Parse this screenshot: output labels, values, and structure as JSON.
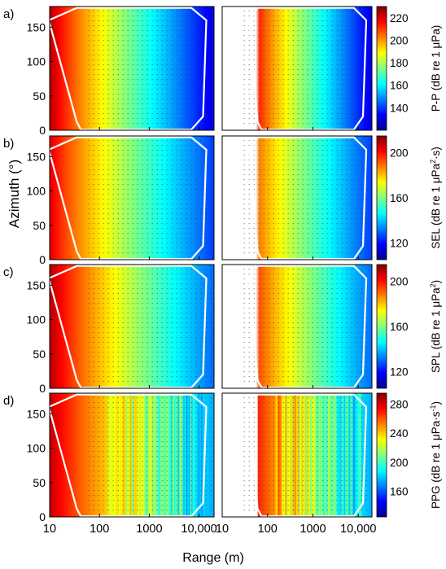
{
  "figure": {
    "ylabel": "Azimuth (°)",
    "xlabel": "Range (m)",
    "x_ticks": [
      "10",
      "100",
      "1000",
      "10,000"
    ],
    "y_ticks": [
      "0",
      "50",
      "100",
      "150"
    ]
  },
  "colors": {
    "colormap": [
      "#00008f",
      "#0000ff",
      "#0080ff",
      "#00ffff",
      "#80ff80",
      "#ffff00",
      "#ff8000",
      "#ff0000",
      "#800000"
    ],
    "boundary": "#ffffff",
    "points": "#333333",
    "axis": "#000000"
  },
  "chart_data": [
    {
      "type": "heatmap",
      "panel": "a)",
      "metric_label": "P-P",
      "colorbar_label_prefix": "P-P (dB re 1 μPa)",
      "colorbar_label_suffix": "",
      "colorbar_label_end": "",
      "colorbar_ticks": [
        140,
        160,
        180,
        200,
        220
      ],
      "zlim": [
        120,
        230
      ],
      "x_scale": "log",
      "xlim": [
        10,
        20000
      ],
      "ylim": [
        0,
        180
      ],
      "left_near_value": 225,
      "right_near_value": 215,
      "far_value": 130,
      "left_near_range_m": 10,
      "right_near_range_m": 60,
      "noisy": false
    },
    {
      "type": "heatmap",
      "panel": "b)",
      "metric_label": "SEL",
      "colorbar_label_prefix": "SEL (dB re 1 μPa",
      "colorbar_label_suffix": "2",
      "colorbar_label_end": "·s)",
      "colorbar_ticks": [
        120,
        160,
        200
      ],
      "zlim": [
        105,
        215
      ],
      "x_scale": "log",
      "xlim": [
        10,
        20000
      ],
      "ylim": [
        0,
        180
      ],
      "left_near_value": 205,
      "right_near_value": 190,
      "far_value": 125,
      "left_near_range_m": 10,
      "right_near_range_m": 60,
      "noisy": false
    },
    {
      "type": "heatmap",
      "panel": "c)",
      "metric_label": "SPL",
      "colorbar_label_prefix": "SPL (dB re 1 μPa",
      "colorbar_label_suffix": "2",
      "colorbar_label_end": ")",
      "colorbar_ticks": [
        120,
        160,
        200
      ],
      "zlim": [
        105,
        215
      ],
      "x_scale": "log",
      "xlim": [
        10,
        20000
      ],
      "ylim": [
        0,
        180
      ],
      "left_near_value": 210,
      "right_near_value": 195,
      "far_value": 130,
      "left_near_range_m": 10,
      "right_near_range_m": 60,
      "noisy": false
    },
    {
      "type": "heatmap",
      "panel": "d)",
      "metric_label": "PPG",
      "colorbar_label_prefix": "PPG (dB re 1 μPa·s",
      "colorbar_label_suffix": "-1",
      "colorbar_label_end": ")",
      "colorbar_ticks": [
        160,
        200,
        240,
        280
      ],
      "zlim": [
        125,
        295
      ],
      "x_scale": "log",
      "xlim": [
        10,
        20000
      ],
      "ylim": [
        0,
        180
      ],
      "left_near_value": 285,
      "right_near_value": 270,
      "far_value": 175,
      "left_near_range_m": 10,
      "right_near_range_m": 60,
      "noisy": true
    }
  ]
}
